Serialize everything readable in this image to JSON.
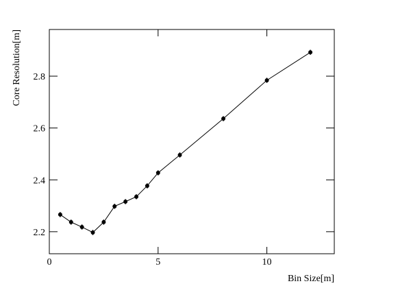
{
  "chart_data": {
    "type": "line",
    "x_label": "Bin Size[m]",
    "y_label": "Core Resolution[m]",
    "x": [
      0.5,
      1,
      1.5,
      2,
      2.5,
      3,
      3.5,
      4,
      4.5,
      5,
      6,
      8,
      10,
      12
    ],
    "series": [
      {
        "color": "#000000",
        "values": [
          2.266,
          2.237,
          2.218,
          2.197,
          2.237,
          2.298,
          2.316,
          2.335,
          2.377,
          2.427,
          2.496,
          2.636,
          2.784,
          2.892
        ],
        "errors": [
          0.01,
          0.01,
          0.01,
          0.01,
          0.01,
          0.01,
          0.01,
          0.01,
          0.01,
          0.01,
          0.01,
          0.01,
          0.01,
          0.01
        ]
      }
    ],
    "xlim": [
      0,
      13.1
    ],
    "xticks": [
      0,
      5,
      10
    ],
    "ylim": [
      2.115,
      2.98
    ],
    "yticks": [
      2.2,
      2.4,
      2.6,
      2.8
    ]
  }
}
